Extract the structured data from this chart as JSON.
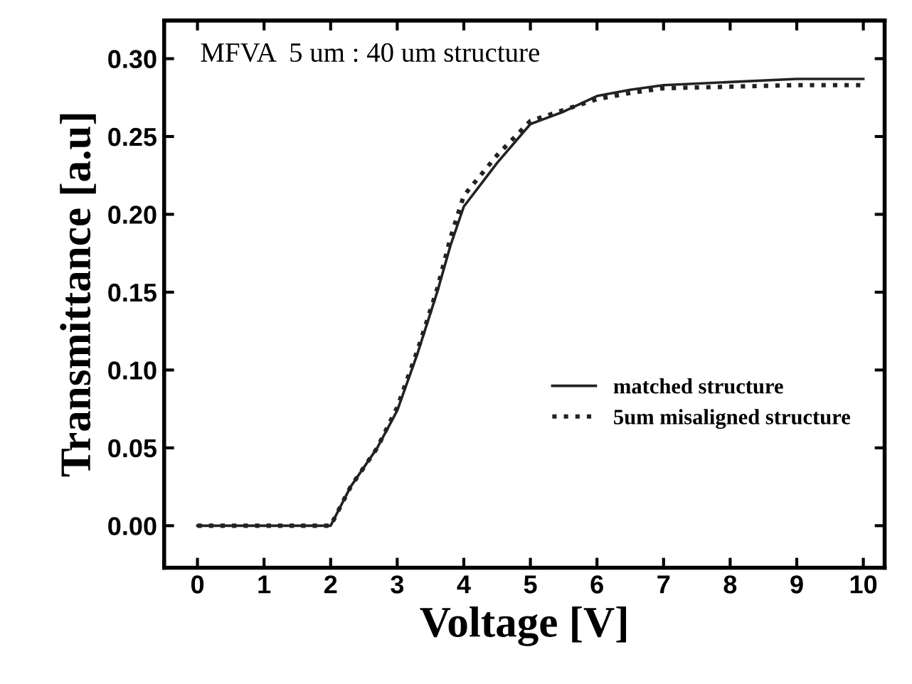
{
  "chart_data": {
    "type": "line",
    "xlabel": "Voltage [V]",
    "ylabel": "Transmittance [a.u]",
    "annotations": [
      "MFVA  5 um : 40 um structure"
    ],
    "xlim": [
      -0.5,
      10.32
    ],
    "ylim": [
      -0.027,
      0.3245
    ],
    "xticks": [
      0,
      1,
      2,
      3,
      4,
      5,
      6,
      7,
      8,
      9,
      10
    ],
    "yticks": [
      {
        "value": 0,
        "label": "0.00"
      },
      {
        "value": 0.05,
        "label": "0.05"
      },
      {
        "value": 0.1,
        "label": "0.10"
      },
      {
        "value": 0.15,
        "label": "0.15"
      },
      {
        "value": 0.2,
        "label": "0.20"
      },
      {
        "value": 0.25,
        "label": "0.25"
      },
      {
        "value": 0.3,
        "label": "0.30"
      }
    ],
    "grid": false,
    "legend": "right",
    "series": [
      {
        "name": "matched structure",
        "color": "#222222",
        "line_style": "solid",
        "x": [
          0,
          1,
          2,
          2.3,
          2.7,
          3,
          3.3,
          3.6,
          3.8,
          4,
          4.5,
          5,
          5.5,
          6,
          6.5,
          7,
          8,
          9,
          10
        ],
        "values": [
          0,
          0,
          0,
          0.025,
          0.05,
          0.074,
          0.11,
          0.15,
          0.18,
          0.205,
          0.233,
          0.258,
          0.266,
          0.276,
          0.28,
          0.283,
          0.285,
          0.287,
          0.287
        ]
      },
      {
        "name": "5um misaligned structure",
        "color": "#222222",
        "line_style": "dotted",
        "x": [
          0,
          1,
          2,
          2.3,
          2.7,
          3,
          3.3,
          3.6,
          3.8,
          4,
          4.5,
          5,
          5.5,
          6,
          6.5,
          7,
          8,
          9,
          10
        ],
        "values": [
          0,
          0,
          0,
          0.025,
          0.05,
          0.076,
          0.112,
          0.152,
          0.185,
          0.212,
          0.238,
          0.26,
          0.267,
          0.274,
          0.278,
          0.281,
          0.282,
          0.283,
          0.283
        ]
      }
    ]
  }
}
